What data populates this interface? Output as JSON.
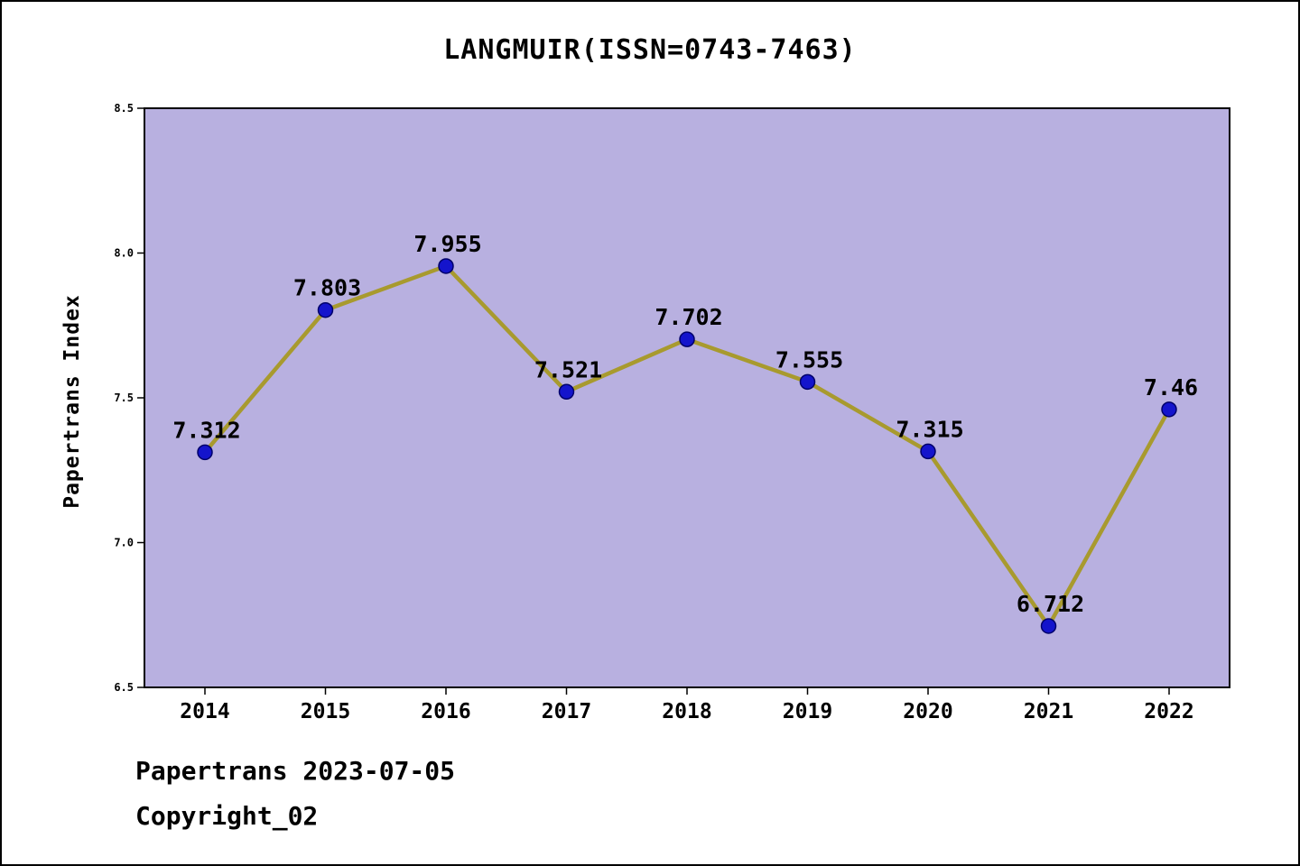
{
  "title": "LANGMUIR(ISSN=0743-7463)",
  "footer": {
    "line1": "Papertrans 2023-07-05",
    "line2": "Copyright_02"
  },
  "chart_data": {
    "type": "line",
    "title": "LANGMUIR(ISSN=0743-7463)",
    "xlabel": "",
    "ylabel": "Papertrans Index",
    "categories": [
      "2014",
      "2015",
      "2016",
      "2017",
      "2018",
      "2019",
      "2020",
      "2021",
      "2022"
    ],
    "values": [
      7.312,
      7.803,
      7.955,
      7.521,
      7.702,
      7.555,
      7.315,
      6.712,
      7.46
    ],
    "point_labels": [
      "7.312",
      "7.803",
      "7.955",
      "7.521",
      "7.702",
      "7.555",
      "7.315",
      "6.712",
      "7.46"
    ],
    "ylim": [
      6.5,
      8.5
    ],
    "yticks": [
      6.5,
      7.0,
      7.5,
      8.0,
      8.5
    ],
    "grid": false,
    "legend": "none",
    "colors": {
      "plot_bg": "#b8b0e0",
      "line": "#a89a2e",
      "marker_fill": "#1414cc",
      "marker_edge": "#00006a",
      "axis": "#000000",
      "text": "#000000"
    }
  }
}
